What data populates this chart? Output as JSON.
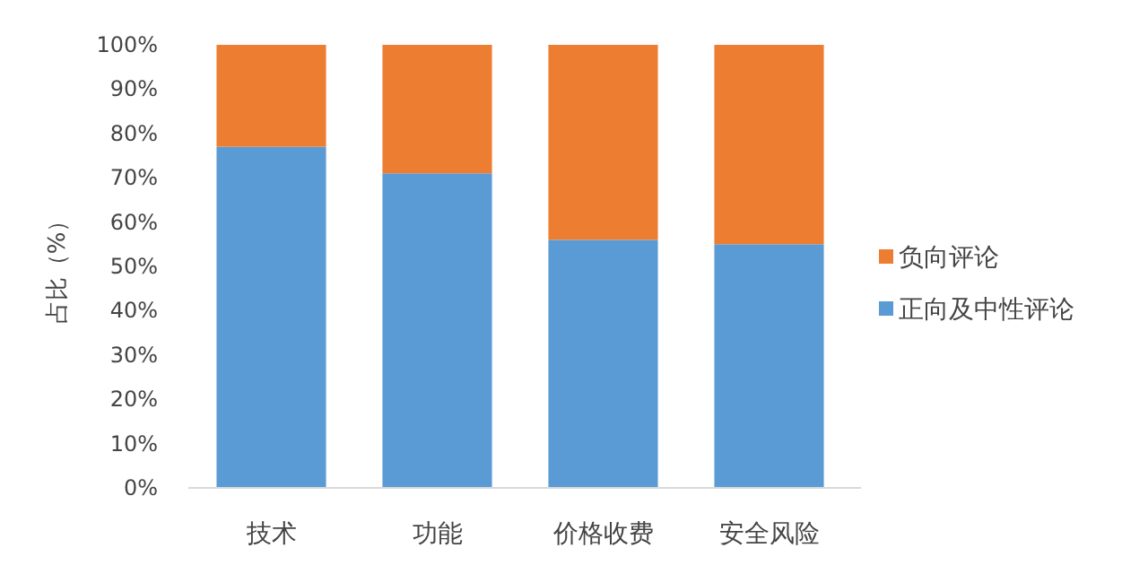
{
  "chart_data": {
    "type": "bar",
    "stacked": true,
    "ylabel": "占比（%）",
    "categories": [
      "技术",
      "功能",
      "价格收费",
      "安全风险"
    ],
    "series": [
      {
        "name": "正向及中性评论",
        "color": "#5b9bd5",
        "values": [
          77,
          71,
          56,
          55
        ]
      },
      {
        "name": "负向评论",
        "color": "#ed7d31",
        "values": [
          23,
          29,
          44,
          45
        ]
      }
    ],
    "ylim": [
      0,
      100
    ],
    "yticks": [
      {
        "value": 0,
        "label": "0%"
      },
      {
        "value": 10,
        "label": "10%"
      },
      {
        "value": 20,
        "label": "20%"
      },
      {
        "value": 30,
        "label": "30%"
      },
      {
        "value": 40,
        "label": "40%"
      },
      {
        "value": 50,
        "label": "50%"
      },
      {
        "value": 60,
        "label": "60%"
      },
      {
        "value": 70,
        "label": "70%"
      },
      {
        "value": 80,
        "label": "80%"
      },
      {
        "value": 90,
        "label": "90%"
      },
      {
        "value": 100,
        "label": "100%"
      }
    ],
    "legend": "right"
  }
}
